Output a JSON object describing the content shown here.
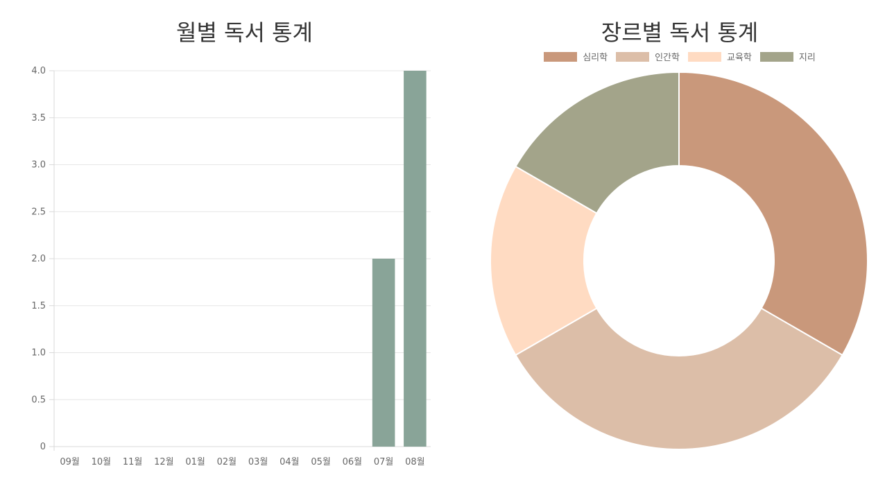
{
  "chart_data": [
    {
      "type": "bar",
      "title": "월별 독서 통계",
      "categories": [
        "09월",
        "10월",
        "11월",
        "12월",
        "01월",
        "02월",
        "03월",
        "04월",
        "05월",
        "06월",
        "07월",
        "08월"
      ],
      "values": [
        0,
        0,
        0,
        0,
        0,
        0,
        0,
        0,
        0,
        0,
        2,
        4
      ],
      "ylim": [
        0,
        4
      ],
      "yticks": [
        "0",
        "0.5",
        "1.0",
        "1.5",
        "2.0",
        "2.5",
        "3.0",
        "3.5",
        "4.0"
      ],
      "grid": true,
      "bar_color": "#89a498"
    },
    {
      "type": "pie",
      "title": "장르별 독서 통계",
      "donut": true,
      "legend_position": "top",
      "labels": [
        "심리학",
        "인간학",
        "교육학",
        "지리"
      ],
      "values": [
        2,
        2,
        1,
        1
      ],
      "colors": [
        "#c9987b",
        "#dcbea8",
        "#ffdbc2",
        "#a3a48a"
      ]
    }
  ]
}
